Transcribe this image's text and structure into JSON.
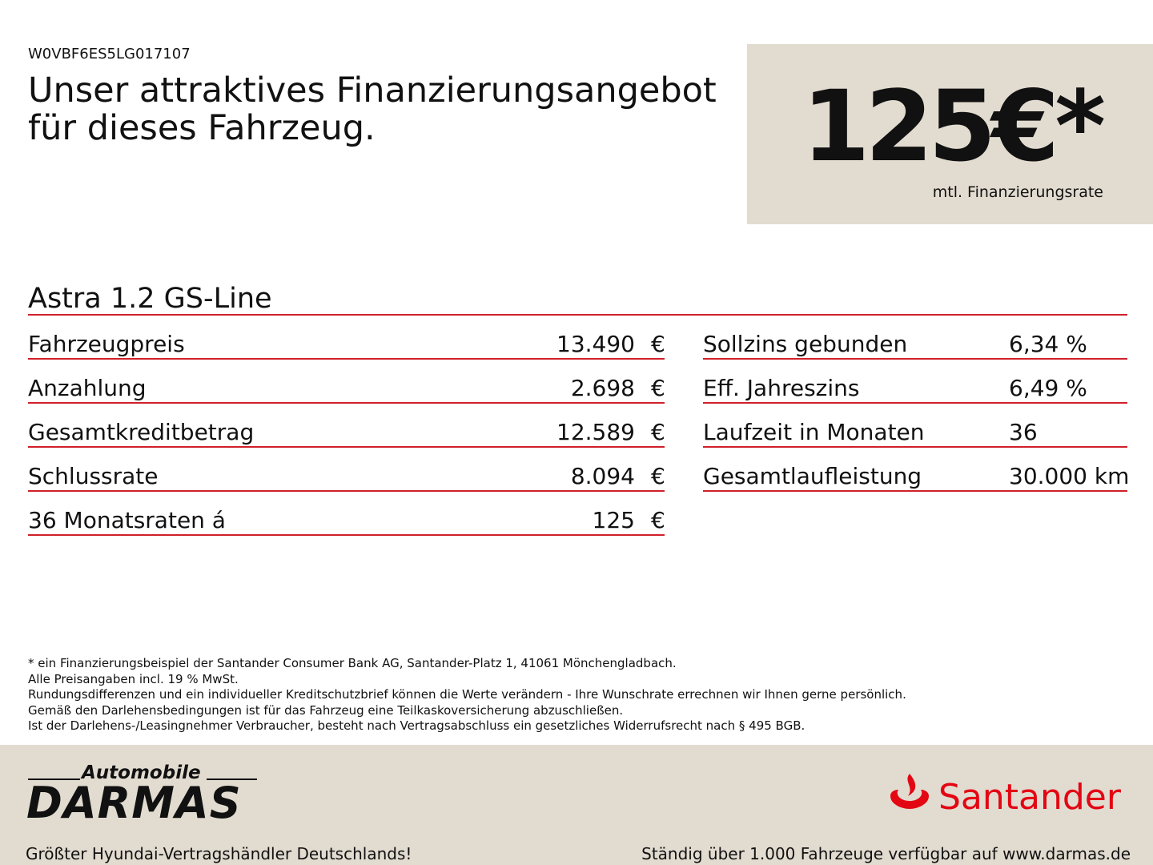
{
  "header": {
    "vin": "W0VBF6ES5LG017107",
    "headline_1": "Unser attraktives Finanzierungsangebot",
    "headline_2": "für dieses Fahrzeug.",
    "price": "125€*",
    "price_caption": "mtl. Finanzierungsrate"
  },
  "model": "Astra 1.2 GS-Line",
  "left_rows": [
    [
      "Fahrzeugpreis",
      "13.490",
      "€"
    ],
    [
      "Anzahlung",
      "2.698",
      "€"
    ],
    [
      "Gesamtkreditbetrag",
      "12.589",
      "€"
    ],
    [
      "Schlussrate",
      "8.094",
      "€"
    ],
    [
      "36 Monatsraten á",
      "125",
      "€"
    ]
  ],
  "right_rows": [
    [
      "Sollzins gebunden",
      "6,34 %"
    ],
    [
      "Eff. Jahreszins",
      "6,49 %"
    ],
    [
      "Laufzeit in Monaten",
      "36"
    ],
    [
      "Gesamtlaufleistung",
      "30.000 km"
    ]
  ],
  "footnotes": [
    "* ein Finanzierungsbeispiel der Santander Consumer Bank AG, Santander-Platz 1, 41061 Mönchengladbach.",
    "Alle Preisangaben incl. 19 % MwSt.",
    "Rundungsdifferenzen und ein individueller Kreditschutzbrief können die Werte verändern - Ihre Wunschrate errechnen wir Ihnen gerne persönlich.",
    "Gemäß den Darlehensbedingungen ist für das Fahrzeug eine Teilkaskoversicherung abzuschließen.",
    "Ist der Darlehens-/Leasingnehmer Verbraucher, besteht nach Vertragsabschluss ein gesetzliches Widerrufsrecht nach § 495 BGB."
  ],
  "footer": {
    "dealer_top": "Automobile",
    "dealer_name": "DARMAS",
    "bank": "Santander",
    "tagline_left": "Größter Hyundai-Vertragshändler Deutschlands!",
    "tagline_right": "Ständig über 1.000 Fahrzeuge verfügbar auf www.darmas.de"
  }
}
